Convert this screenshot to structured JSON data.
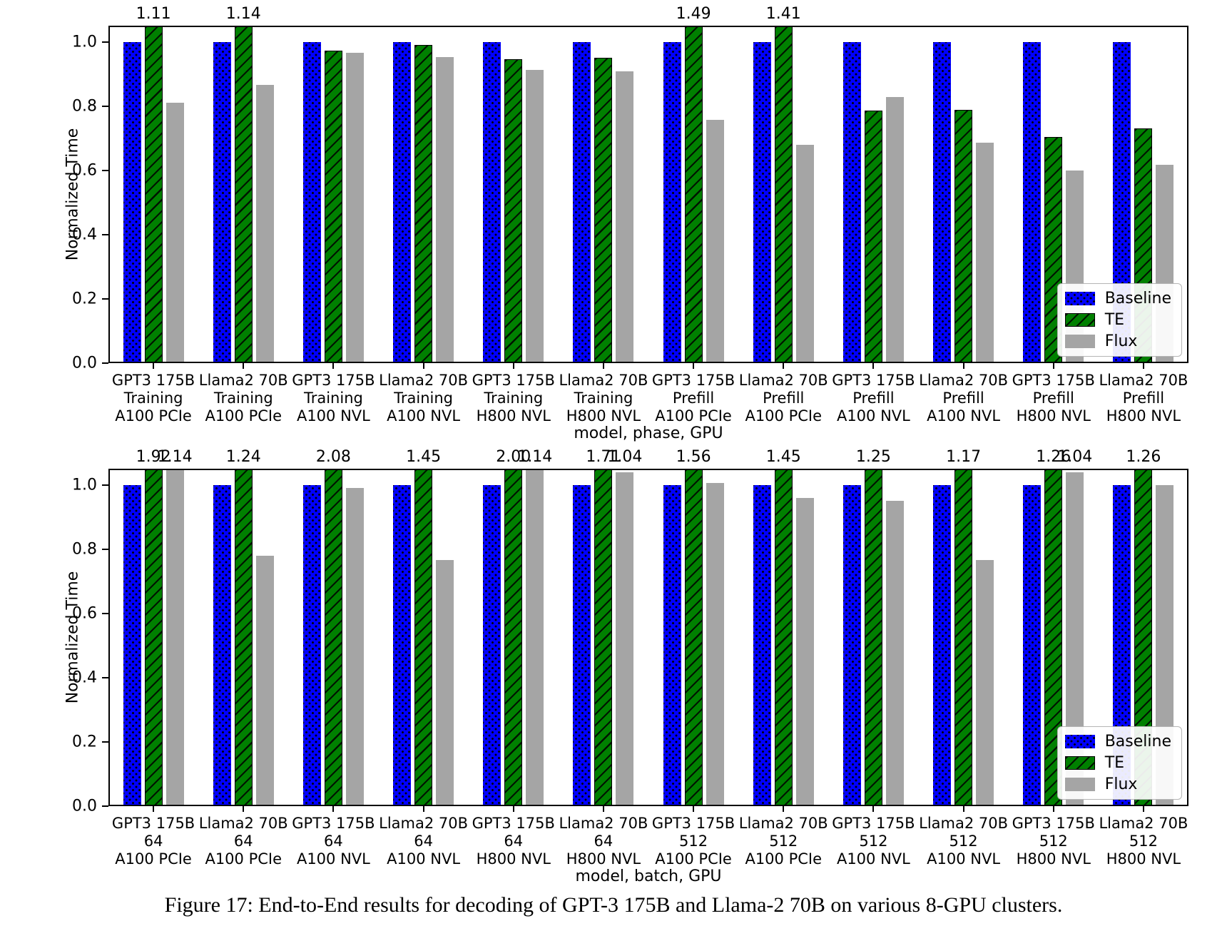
{
  "caption": "Figure 17: End-to-End results for decoding of GPT-3 175B and Llama-2 70B on various 8-GPU clusters.",
  "colors": {
    "baseline": "#0000ff",
    "te": "#008000",
    "flux": "#a5a5a5",
    "axis": "#000000"
  },
  "chart_data": [
    {
      "type": "bar",
      "ylabel": "Normalized Time",
      "xlabel": "model, phase, GPU",
      "ylim": [
        0,
        1.05
      ],
      "yticks": [
        0.0,
        0.2,
        0.4,
        0.6,
        0.8,
        1.0
      ],
      "grid": false,
      "legend": {
        "position": "lower right",
        "entries": [
          "Baseline",
          "TE",
          "Flux"
        ]
      },
      "categories": [
        [
          "GPT3 175B",
          "Training",
          "A100 PCIe"
        ],
        [
          "Llama2 70B",
          "Training",
          "A100 PCIe"
        ],
        [
          "GPT3 175B",
          "Training",
          "A100 NVL"
        ],
        [
          "Llama2 70B",
          "Training",
          "A100 NVL"
        ],
        [
          "GPT3 175B",
          "Training",
          "H800 NVL"
        ],
        [
          "Llama2 70B",
          "Training",
          "H800 NVL"
        ],
        [
          "GPT3 175B",
          "Prefill",
          "A100 PCIe"
        ],
        [
          "Llama2 70B",
          "Prefill",
          "A100 PCIe"
        ],
        [
          "GPT3 175B",
          "Prefill",
          "A100 NVL"
        ],
        [
          "Llama2 70B",
          "Prefill",
          "A100 NVL"
        ],
        [
          "GPT3 175B",
          "Prefill",
          "H800 NVL"
        ],
        [
          "Llama2 70B",
          "Prefill",
          "H800 NVL"
        ]
      ],
      "series": [
        {
          "name": "Baseline",
          "color_key": "baseline",
          "hatch": "dots",
          "values": [
            1.0,
            1.0,
            1.0,
            1.0,
            1.0,
            1.0,
            1.0,
            1.0,
            1.0,
            1.0,
            1.0,
            1.0
          ]
        },
        {
          "name": "TE",
          "color_key": "te",
          "hatch": "diag",
          "values": [
            1.11,
            1.14,
            0.973,
            0.99,
            0.946,
            0.951,
            1.49,
            1.41,
            0.785,
            0.787,
            0.704,
            0.73
          ]
        },
        {
          "name": "Flux",
          "color_key": "flux",
          "hatch": "none",
          "values": [
            0.81,
            0.865,
            0.965,
            0.953,
            0.913,
            0.909,
            0.756,
            0.68,
            0.827,
            0.687,
            0.6,
            0.618
          ]
        }
      ],
      "bar_labels": {
        "Baseline": {},
        "TE": {
          "0": "1.11",
          "1": "1.14",
          "6": "1.49",
          "7": "1.41"
        },
        "Flux": {}
      }
    },
    {
      "type": "bar",
      "ylabel": "Normalized Time",
      "xlabel": "model, batch, GPU",
      "ylim": [
        0,
        1.05
      ],
      "yticks": [
        0.0,
        0.2,
        0.4,
        0.6,
        0.8,
        1.0
      ],
      "grid": false,
      "legend": {
        "position": "lower right",
        "entries": [
          "Baseline",
          "TE",
          "Flux"
        ]
      },
      "categories": [
        [
          "GPT3 175B",
          "64",
          "A100 PCIe"
        ],
        [
          "Llama2 70B",
          "64",
          "A100 PCIe"
        ],
        [
          "GPT3 175B",
          "64",
          "A100 NVL"
        ],
        [
          "Llama2 70B",
          "64",
          "A100 NVL"
        ],
        [
          "GPT3 175B",
          "64",
          "H800 NVL"
        ],
        [
          "Llama2 70B",
          "64",
          "H800 NVL"
        ],
        [
          "GPT3 175B",
          "512",
          "A100 PCIe"
        ],
        [
          "Llama2 70B",
          "512",
          "A100 PCIe"
        ],
        [
          "GPT3 175B",
          "512",
          "A100 NVL"
        ],
        [
          "Llama2 70B",
          "512",
          "A100 NVL"
        ],
        [
          "GPT3 175B",
          "512",
          "H800 NVL"
        ],
        [
          "Llama2 70B",
          "512",
          "H800 NVL"
        ]
      ],
      "series": [
        {
          "name": "Baseline",
          "color_key": "baseline",
          "hatch": "dots",
          "values": [
            1.0,
            1.0,
            1.0,
            1.0,
            1.0,
            1.0,
            1.0,
            1.0,
            1.0,
            1.0,
            1.0,
            1.0
          ]
        },
        {
          "name": "TE",
          "color_key": "te",
          "hatch": "diag",
          "values": [
            1.92,
            1.24,
            2.08,
            1.45,
            2.0,
            1.71,
            1.56,
            1.45,
            1.25,
            1.17,
            1.26,
            1.26
          ]
        },
        {
          "name": "Flux",
          "color_key": "flux",
          "hatch": "none",
          "values": [
            1.14,
            0.78,
            0.99,
            0.767,
            1.14,
            1.04,
            1.005,
            0.96,
            0.951,
            0.765,
            1.04,
            1.0
          ]
        }
      ],
      "bar_labels": {
        "Baseline": {},
        "TE": {
          "0": "1.92",
          "1": "1.24",
          "2": "2.08",
          "3": "1.45",
          "4": "2.00",
          "5": "1.71",
          "6": "1.56",
          "7": "1.45",
          "8": "1.25",
          "9": "1.17",
          "10": "1.26",
          "11": "1.26"
        },
        "Flux": {
          "0": "1.14",
          "4": "1.14",
          "5": "1.04",
          "10": "1.04"
        }
      }
    }
  ]
}
